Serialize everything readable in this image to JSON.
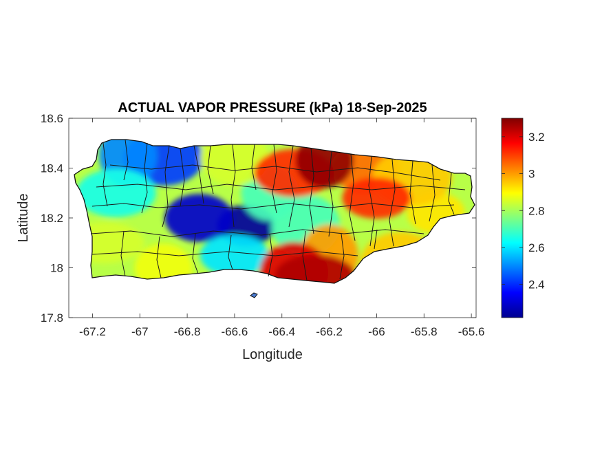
{
  "chart_data": {
    "type": "heatmap",
    "title": "ACTUAL VAPOR PRESSURE (kPa) 18-Sep-2025",
    "xlabel": "Longitude",
    "ylabel": "Latitude",
    "xlim": [
      -67.3,
      -65.58
    ],
    "ylim": [
      17.8,
      18.6
    ],
    "x_ticks": [
      -67.2,
      -67,
      -66.8,
      -66.6,
      -66.4,
      -66.2,
      -66,
      -65.8,
      -65.6
    ],
    "x_tick_labels": [
      "-67.2",
      "-67",
      "-66.8",
      "-66.6",
      "-66.4",
      "-66.2",
      "-66",
      "-65.8",
      "-65.6"
    ],
    "y_ticks": [
      17.8,
      18,
      18.2,
      18.4,
      18.6
    ],
    "y_tick_labels": [
      "17.8",
      "18",
      "18.2",
      "18.4",
      "18.6"
    ],
    "colorbar": {
      "colormap": "jet",
      "range": [
        2.22,
        3.3
      ],
      "ticks": [
        2.4,
        2.6,
        2.8,
        3,
        3.2
      ],
      "tick_labels": [
        "2.4",
        "2.6",
        "2.8",
        "3",
        "3.2"
      ]
    },
    "field_features": [
      {
        "lon": -66.55,
        "lat": 18.17,
        "value": 2.25
      },
      {
        "lon": -66.75,
        "lat": 18.2,
        "value": 2.3
      },
      {
        "lon": -66.9,
        "lat": 18.44,
        "value": 2.42
      },
      {
        "lon": -67.05,
        "lat": 18.45,
        "value": 2.5
      },
      {
        "lon": -66.6,
        "lat": 18.05,
        "value": 2.6
      },
      {
        "lon": -67.1,
        "lat": 18.3,
        "value": 2.65
      },
      {
        "lon": -66.45,
        "lat": 18.3,
        "value": 2.7
      },
      {
        "lon": -66.3,
        "lat": 18.17,
        "value": 2.7
      },
      {
        "lon": -67.15,
        "lat": 18.1,
        "value": 2.85
      },
      {
        "lon": -66.9,
        "lat": 18.0,
        "value": 2.88
      },
      {
        "lon": -66.6,
        "lat": 18.44,
        "value": 2.85
      },
      {
        "lon": -65.9,
        "lat": 18.02,
        "value": 2.95
      },
      {
        "lon": -65.75,
        "lat": 18.22,
        "value": 2.92
      },
      {
        "lon": -66.05,
        "lat": 18.4,
        "value": 3.05
      },
      {
        "lon": -65.85,
        "lat": 18.36,
        "value": 2.95
      },
      {
        "lon": -66.2,
        "lat": 18.05,
        "value": 3.0
      },
      {
        "lon": -66.0,
        "lat": 18.28,
        "value": 3.12
      },
      {
        "lon": -66.35,
        "lat": 18.38,
        "value": 3.12
      },
      {
        "lon": -66.22,
        "lat": 18.43,
        "value": 3.28
      },
      {
        "lon": -66.35,
        "lat": 17.98,
        "value": 3.2
      },
      {
        "lon": -66.26,
        "lat": 17.97,
        "value": 3.25
      }
    ]
  }
}
